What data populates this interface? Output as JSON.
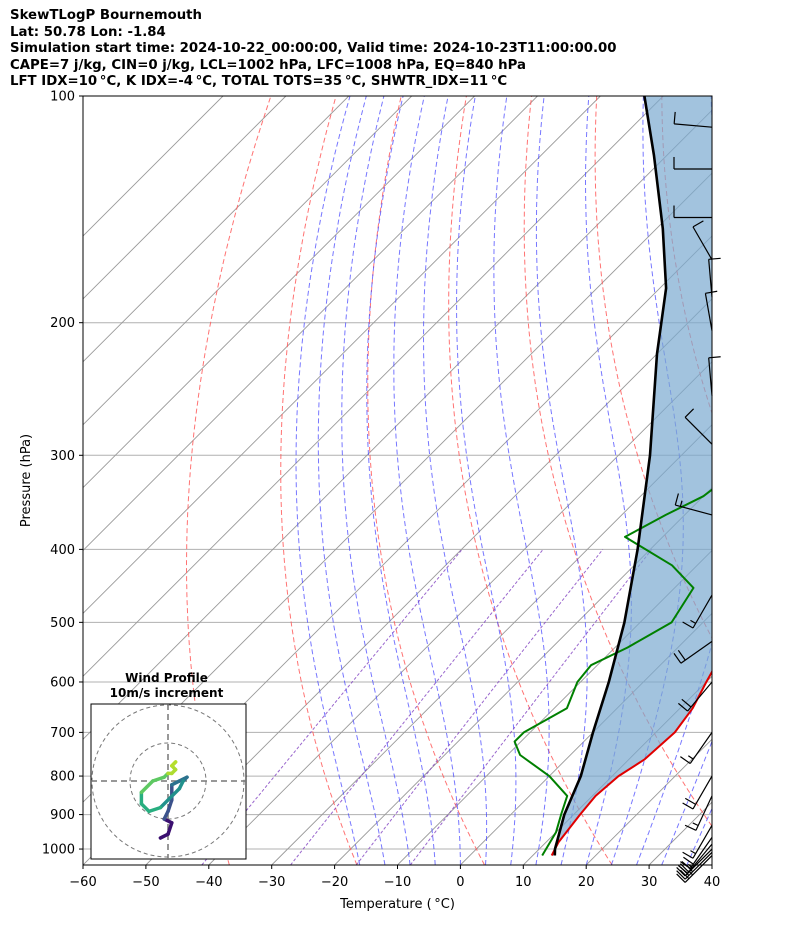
{
  "header": {
    "line1": "SkewTLogP Bournemouth",
    "line2": "Lat: 50.78   Lon: -1.84",
    "line3": "Simulation start time: 2024-10-22_00:00:00, Valid time: 2024-10-23T11:00:00.00",
    "line4": "CAPE=7 j/kg, CIN=0 j/kg, LCL=1002 hPa, LFC=1008 hPa, EQ=840 hPa",
    "line5": "LFT IDX=10 °C, K IDX=-4 °C, TOTAL TOTS=35 °C, SHWTR_IDX=11 °C"
  },
  "chart_data": {
    "type": "line",
    "subtype": "skew-T log-P diagram",
    "xlabel": "Temperature ( °C)",
    "ylabel": "Pressure (hPa)",
    "xlim": [
      -60,
      40
    ],
    "ylim": [
      1050,
      100
    ],
    "y_scale": "log",
    "x_ticks": [
      "−60",
      "−50",
      "−40",
      "−30",
      "−20",
      "−10",
      "0",
      "10",
      "20",
      "30",
      "40"
    ],
    "y_ticks": [
      "1000",
      "900",
      "800",
      "700",
      "600",
      "500",
      "400",
      "300",
      "200",
      "100"
    ],
    "grid": true,
    "colors": {
      "temperature": "#e00000",
      "dewpoint": "#008000",
      "parcel": "#000000",
      "cape_fill": "#7aaad0",
      "dry_adiabat": "#ff5a5a",
      "moist_adiabat": "#4a4aff",
      "mixing_ratio": "#8040c0",
      "isotherm": "#999999"
    },
    "series": [
      {
        "role": "temperature",
        "points": [
          [
            13.0,
            1020
          ],
          [
            12.0,
            980
          ],
          [
            11.0,
            900
          ],
          [
            10.5,
            850
          ],
          [
            11.0,
            800
          ],
          [
            12.5,
            760
          ],
          [
            13.0,
            700
          ],
          [
            12.0,
            650
          ],
          [
            10.0,
            600
          ],
          [
            8.0,
            550
          ],
          [
            6.0,
            500
          ],
          [
            3.0,
            450
          ],
          [
            0.0,
            400
          ],
          [
            -4.0,
            350
          ],
          [
            -7.0,
            320
          ],
          [
            -10.0,
            290
          ],
          [
            -14.0,
            260
          ],
          [
            -18.0,
            240
          ],
          [
            -22.0,
            220
          ],
          [
            -24.0,
            210
          ],
          [
            -24.5,
            200
          ],
          [
            -24.0,
            190
          ],
          [
            -23.0,
            180
          ],
          [
            -22.0,
            170
          ],
          [
            -21.0,
            160
          ],
          [
            -20.0,
            150
          ],
          [
            -19.0,
            140
          ],
          [
            -18.0,
            130
          ],
          [
            -17.5,
            120
          ],
          [
            -17.0,
            110
          ],
          [
            -17.0,
            100
          ]
        ]
      },
      {
        "role": "dewpoint",
        "points": [
          [
            11.5,
            1020
          ],
          [
            10.0,
            950
          ],
          [
            8.0,
            900
          ],
          [
            6.0,
            850
          ],
          [
            0.0,
            800
          ],
          [
            -8.0,
            750
          ],
          [
            -11.0,
            720
          ],
          [
            -11.0,
            700
          ],
          [
            -8.0,
            650
          ],
          [
            -10.5,
            600
          ],
          [
            -11.0,
            570
          ],
          [
            -8.0,
            540
          ],
          [
            -5.0,
            500
          ],
          [
            -7.0,
            450
          ],
          [
            -14.0,
            420
          ],
          [
            -26.0,
            385
          ],
          [
            -23.0,
            360
          ],
          [
            -20.0,
            340
          ],
          [
            -19.0,
            320
          ],
          [
            -16.5,
            290
          ],
          [
            -16.0,
            270
          ],
          [
            -18.0,
            250
          ],
          [
            -20.5,
            230
          ],
          [
            -22.0,
            210
          ],
          [
            -23.5,
            200
          ],
          [
            -22.5,
            190
          ],
          [
            -22.0,
            180
          ],
          [
            -21.0,
            170
          ],
          [
            -22.0,
            160
          ],
          [
            -24.0,
            150
          ],
          [
            -27.0,
            140
          ],
          [
            -28.0,
            130
          ],
          [
            -28.5,
            120
          ],
          [
            -28.0,
            110
          ],
          [
            -28.0,
            100
          ]
        ]
      },
      {
        "role": "parcel",
        "points": [
          [
            13.5,
            1020
          ],
          [
            12.5,
            1000
          ],
          [
            8.5,
            900
          ],
          [
            5.0,
            800
          ],
          [
            0.0,
            700
          ],
          [
            -5.5,
            600
          ],
          [
            -12.5,
            500
          ],
          [
            -22.0,
            400
          ],
          [
            -35.0,
            300
          ],
          [
            -50.0,
            220
          ],
          [
            -59.0,
            180
          ],
          [
            -69.0,
            150
          ],
          [
            -82.0,
            120
          ],
          [
            -93.0,
            100
          ]
        ]
      }
    ],
    "wind_barbs": {
      "units": "knots",
      "levels": [
        {
          "p": 1020,
          "speed": 25,
          "dir": 225
        },
        {
          "p": 1010,
          "speed": 25,
          "dir": 225
        },
        {
          "p": 1000,
          "speed": 25,
          "dir": 225
        },
        {
          "p": 985,
          "speed": 20,
          "dir": 220
        },
        {
          "p": 965,
          "speed": 20,
          "dir": 215
        },
        {
          "p": 930,
          "speed": 15,
          "dir": 210
        },
        {
          "p": 850,
          "speed": 15,
          "dir": 205
        },
        {
          "p": 800,
          "speed": 20,
          "dir": 210
        },
        {
          "p": 700,
          "speed": 15,
          "dir": 215
        },
        {
          "p": 600,
          "speed": 20,
          "dir": 220
        },
        {
          "p": 530,
          "speed": 20,
          "dir": 235
        },
        {
          "p": 460,
          "speed": 15,
          "dir": 210
        },
        {
          "p": 360,
          "speed": 15,
          "dir": 285
        },
        {
          "p": 290,
          "speed": 10,
          "dir": 315
        },
        {
          "p": 250,
          "speed": 10,
          "dir": 355
        },
        {
          "p": 205,
          "speed": 10,
          "dir": 350
        },
        {
          "p": 185,
          "speed": 10,
          "dir": 355
        },
        {
          "p": 165,
          "speed": 10,
          "dir": 330
        },
        {
          "p": 145,
          "speed": 10,
          "dir": 270
        },
        {
          "p": 125,
          "speed": 10,
          "dir": 270
        },
        {
          "p": 110,
          "speed": 10,
          "dir": 275
        }
      ]
    },
    "hodograph": {
      "title": "Wind Profile",
      "subtitle": "10m/s increment",
      "rings_ms": [
        10,
        20,
        30
      ],
      "range_ms": 25,
      "u_v": [
        [
          -2,
          -15
        ],
        [
          0,
          -14
        ],
        [
          1,
          -11
        ],
        [
          -1,
          -10
        ],
        [
          0,
          -8
        ],
        [
          1,
          -5
        ],
        [
          1,
          -1
        ],
        [
          3,
          0
        ],
        [
          5,
          1
        ],
        [
          4,
          0
        ],
        [
          3,
          -2
        ],
        [
          1,
          -4
        ],
        [
          -2,
          -7
        ],
        [
          -5,
          -8
        ],
        [
          -7,
          -6
        ],
        [
          -7,
          -3
        ],
        [
          -4,
          0
        ],
        [
          -1,
          1
        ],
        [
          0,
          2
        ],
        [
          1,
          2
        ],
        [
          2,
          3
        ],
        [
          1,
          4
        ],
        [
          2,
          5
        ],
        [
          1,
          4
        ]
      ]
    }
  }
}
